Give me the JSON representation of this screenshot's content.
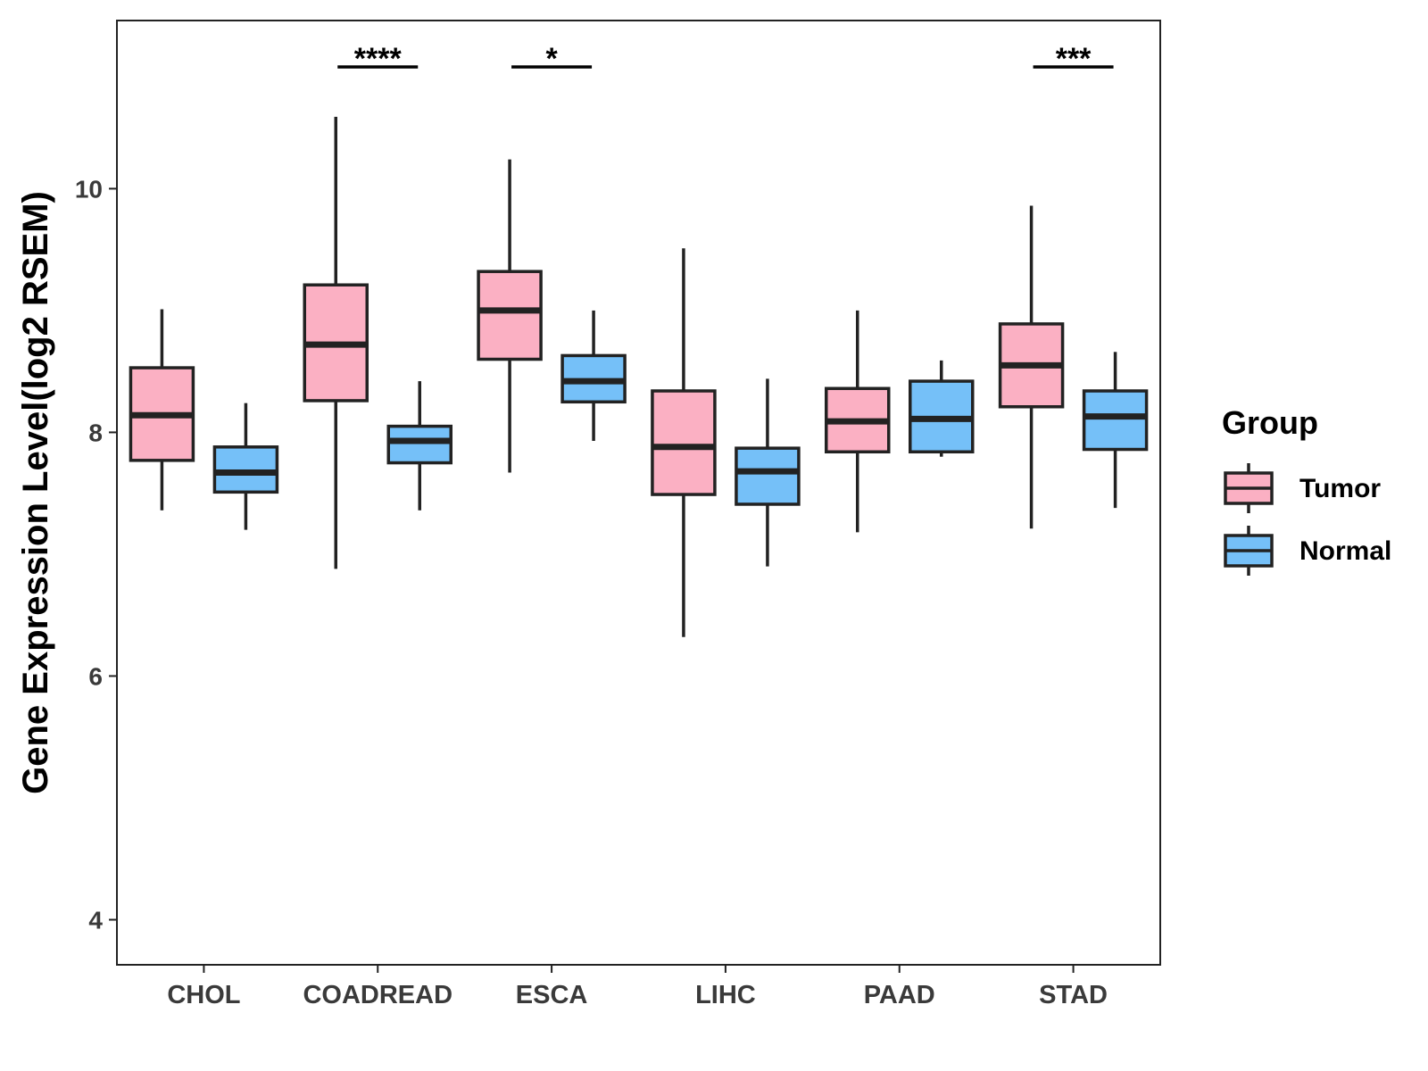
{
  "chart_data": {
    "type": "boxplot",
    "title": "",
    "xlabel": "",
    "ylabel": "Gene Expression Level(log2 RSEM)",
    "ylim": [
      3.63,
      11.38
    ],
    "yticks": [
      4,
      6,
      8,
      10
    ],
    "categories": [
      "CHOL",
      "COADREAD",
      "ESCA",
      "LIHC",
      "PAAD",
      "STAD"
    ],
    "legend": {
      "title": "Group",
      "position": "right",
      "entries": [
        {
          "name": "Tumor",
          "color": "#fbb0c3"
        },
        {
          "name": "Normal",
          "color": "#75c0f8"
        }
      ]
    },
    "series": [
      {
        "name": "Tumor",
        "color": "#fbb0c3",
        "boxes": [
          {
            "min": 7.36,
            "q1": 7.77,
            "median": 8.14,
            "q3": 8.53,
            "max": 9.01
          },
          {
            "min": 6.88,
            "q1": 8.26,
            "median": 8.72,
            "q3": 9.21,
            "max": 10.59
          },
          {
            "min": 7.67,
            "q1": 8.6,
            "median": 9.0,
            "q3": 9.32,
            "max": 10.24
          },
          {
            "min": 6.32,
            "q1": 7.49,
            "median": 7.88,
            "q3": 8.34,
            "max": 9.51
          },
          {
            "min": 7.18,
            "q1": 7.84,
            "median": 8.09,
            "q3": 8.36,
            "max": 9.0
          },
          {
            "min": 7.21,
            "q1": 8.21,
            "median": 8.55,
            "q3": 8.89,
            "max": 9.86
          }
        ]
      },
      {
        "name": "Normal",
        "color": "#75c0f8",
        "boxes": [
          {
            "min": 7.2,
            "q1": 7.51,
            "median": 7.67,
            "q3": 7.88,
            "max": 8.24
          },
          {
            "min": 7.36,
            "q1": 7.75,
            "median": 7.93,
            "q3": 8.05,
            "max": 8.42
          },
          {
            "min": 7.93,
            "q1": 8.25,
            "median": 8.42,
            "q3": 8.63,
            "max": 9.0
          },
          {
            "min": 6.9,
            "q1": 7.41,
            "median": 7.68,
            "q3": 7.87,
            "max": 8.44
          },
          {
            "min": 7.8,
            "q1": 7.84,
            "median": 8.11,
            "q3": 8.42,
            "max": 8.59
          },
          {
            "min": 7.38,
            "q1": 7.86,
            "median": 8.13,
            "q3": 8.34,
            "max": 8.66
          }
        ]
      }
    ],
    "annotations": [
      {
        "category": "COADREAD",
        "label": "****"
      },
      {
        "category": "ESCA",
        "label": "*"
      },
      {
        "category": "STAD",
        "label": "***"
      }
    ]
  }
}
